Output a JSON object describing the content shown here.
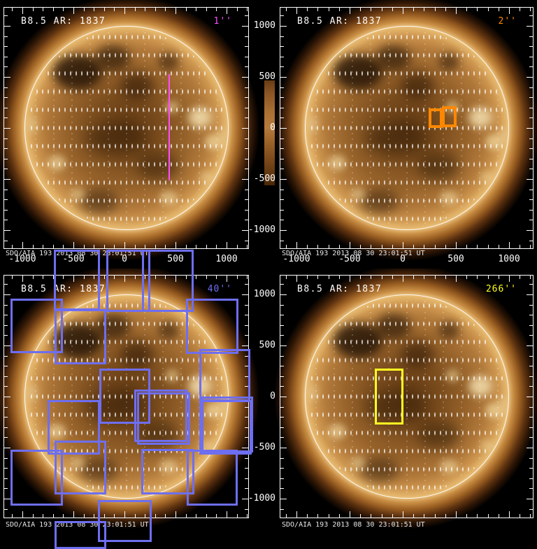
{
  "figure_title": "B8.5 AR: 1837",
  "colors": {
    "axis": "#ffffff",
    "slit_1": "#ff4dff",
    "slit_2": "#ff8800",
    "raster_40": "#6e6ef0",
    "sitstare_266": "#ffff22"
  },
  "chart_data": [
    {
      "type": "heatmap",
      "panel": "top-left",
      "title": "B8.5 AR: 1837",
      "slit_label": "1''",
      "slit_color": "#ff4dff",
      "instrument_stamp": "SDO/AIA 193 2013_08_30 23:01:51 UT",
      "x_ticks": [
        -1000,
        -500,
        0,
        500,
        1000
      ],
      "x_tick_labels": [
        "-1000",
        "-500",
        "0",
        "500",
        "1000"
      ],
      "y_ticks": [
        1000,
        500,
        0,
        -500,
        -1000
      ],
      "y_tick_labels": [
        "1000",
        "500",
        "0",
        "-500",
        "-1000"
      ],
      "x_tick_labels_visible": true,
      "y_tick_labels_visible": false,
      "xlim": [
        -1185,
        1220
      ],
      "ylim": [
        -1187,
        1187
      ],
      "minor_tick_step": 100,
      "overlays": [
        {
          "shape": "line",
          "color": "#ff4dff",
          "x": 236,
          "y": 96,
          "y2": 248,
          "stroke": 2
        }
      ]
    },
    {
      "type": "heatmap",
      "panel": "top-right",
      "title": "B8.5 AR: 1837",
      "slit_label": "2''",
      "slit_color": "#ff8800",
      "instrument_stamp": "SDO/AIA 193 2013_08_30 23:01:51 UT",
      "x_ticks": [
        -1000,
        -500,
        0,
        500,
        1000
      ],
      "x_tick_labels": [
        "-1000",
        "-500",
        "0",
        "500",
        "1000"
      ],
      "y_ticks": [
        1000,
        500,
        0,
        -500,
        -1000
      ],
      "y_tick_labels": [
        "1000",
        "500",
        "0",
        "-500",
        "-1000"
      ],
      "x_tick_labels_visible": true,
      "y_tick_labels_visible": true,
      "xlim": [
        -1158,
        1230
      ],
      "ylim": [
        -1187,
        1187
      ],
      "minor_tick_step": 100,
      "overlays": [
        {
          "shape": "rect",
          "color": "#ff8800",
          "x": 213,
          "y": 145,
          "w": 20,
          "h": 28,
          "stroke": 4
        },
        {
          "shape": "rect",
          "color": "#ff8800",
          "x": 232,
          "y": 142,
          "w": 21,
          "h": 30,
          "stroke": 4
        }
      ]
    },
    {
      "type": "heatmap",
      "panel": "bottom-left",
      "title": "B8.5 AR: 1837",
      "slit_label": "40''",
      "slit_color": "#6e6ef0",
      "instrument_stamp": "SDO/AIA 193 2013_08_30 23:01:51 UT",
      "x_ticks": [
        -1000,
        -500,
        0,
        500,
        1000
      ],
      "x_tick_labels": [
        "-1000",
        "-500",
        "0",
        "500",
        "1000"
      ],
      "y_ticks": [
        1000,
        500,
        0,
        -500,
        -1000
      ],
      "y_tick_labels": [
        "1000",
        "500",
        "0",
        "-500",
        "-1000"
      ],
      "x_tick_labels_visible": false,
      "y_tick_labels_visible": false,
      "xlim": [
        -1185,
        1220
      ],
      "ylim": [
        -1192,
        1192
      ],
      "minor_tick_step": 100,
      "overlays": [
        {
          "shape": "rect",
          "color": "#6e6ef0",
          "x": 10,
          "y": 34,
          "w": 75,
          "h": 78,
          "stroke": 3
        },
        {
          "shape": "rect",
          "color": "#6e6ef0",
          "x": 73,
          "y": 49,
          "w": 74,
          "h": 79,
          "stroke": 3
        },
        {
          "shape": "rect",
          "color": "#6e6ef0",
          "x": 72,
          "y": -36,
          "w": 66,
          "h": 87,
          "stroke": 3
        },
        {
          "shape": "rect",
          "color": "#6e6ef0",
          "x": 147,
          "y": -36,
          "w": 63,
          "h": 89,
          "stroke": 3
        },
        {
          "shape": "rect",
          "color": "#6e6ef0",
          "x": 198,
          "y": -36,
          "w": 74,
          "h": 89,
          "stroke": 3
        },
        {
          "shape": "rect",
          "color": "#6e6ef0",
          "x": 261,
          "y": 34,
          "w": 75,
          "h": 79,
          "stroke": 3
        },
        {
          "shape": "rect",
          "color": "#6e6ef0",
          "x": 137,
          "y": 134,
          "w": 73,
          "h": 79,
          "stroke": 3
        },
        {
          "shape": "rect",
          "color": "#6e6ef0",
          "x": 280,
          "y": 106,
          "w": 73,
          "h": 75,
          "stroke": 3
        },
        {
          "shape": "rect",
          "color": "#6e6ef0",
          "x": 63,
          "y": 179,
          "w": 75,
          "h": 78,
          "stroke": 3
        },
        {
          "shape": "rect",
          "color": "#6e6ef0",
          "x": 73,
          "y": 237,
          "w": 74,
          "h": 77,
          "stroke": 3
        },
        {
          "shape": "rect",
          "color": "#6e6ef0",
          "x": 10,
          "y": 250,
          "w": 75,
          "h": 80,
          "stroke": 3
        },
        {
          "shape": "rect",
          "color": "#6e6ef0",
          "x": 187,
          "y": 164,
          "w": 76,
          "h": 75,
          "stroke": 3
        },
        {
          "shape": "rect",
          "color": "#6e6ef0",
          "x": 191,
          "y": 168,
          "w": 76,
          "h": 75,
          "stroke": 3
        },
        {
          "shape": "rect",
          "color": "#6e6ef0",
          "x": 197,
          "y": 249,
          "w": 76,
          "h": 65,
          "stroke": 3
        },
        {
          "shape": "rect",
          "color": "#6e6ef0",
          "x": 262,
          "y": 250,
          "w": 73,
          "h": 80,
          "stroke": 3
        },
        {
          "shape": "rect",
          "color": "#6e6ef0",
          "x": 280,
          "y": 179,
          "w": 75,
          "h": 78,
          "stroke": 3
        },
        {
          "shape": "rect",
          "color": "#6e6ef0",
          "x": 283,
          "y": 174,
          "w": 74,
          "h": 80,
          "stroke": 3
        },
        {
          "shape": "rect",
          "color": "#6e6ef0",
          "x": 135,
          "y": 322,
          "w": 77,
          "h": 60,
          "stroke": 3
        },
        {
          "shape": "rect",
          "color": "#6e6ef0",
          "x": 73,
          "y": 352,
          "w": 74,
          "h": 40,
          "stroke": 3
        }
      ]
    },
    {
      "type": "heatmap",
      "panel": "bottom-right",
      "title": "B8.5 AR: 1837",
      "slit_label": "266''",
      "slit_color": "#ffff22",
      "instrument_stamp": "SDO/AIA 193 2013_08_30 23:01:51 UT",
      "x_ticks": [
        -1000,
        -500,
        0,
        500,
        1000
      ],
      "x_tick_labels": [
        "-1000",
        "-500",
        "0",
        "500",
        "1000"
      ],
      "y_ticks": [
        1000,
        500,
        0,
        -500,
        -1000
      ],
      "y_tick_labels": [
        "1000",
        "500",
        "0",
        "-500",
        "-1000"
      ],
      "x_tick_labels_visible": false,
      "y_tick_labels_visible": true,
      "xlim": [
        -1158,
        1230
      ],
      "ylim": [
        -1192,
        1192
      ],
      "minor_tick_step": 100,
      "overlays": [
        {
          "shape": "rect",
          "color": "#ffff22",
          "x": 136,
          "y": 134,
          "w": 41,
          "h": 80,
          "stroke": 3
        }
      ]
    }
  ]
}
